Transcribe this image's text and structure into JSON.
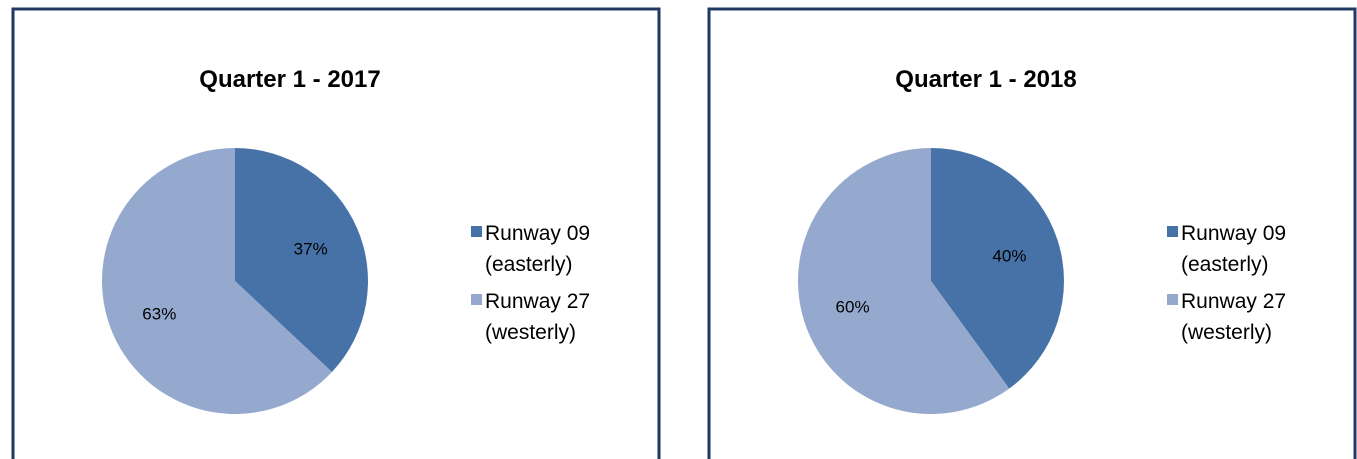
{
  "chart_data": [
    {
      "type": "pie",
      "title": "Quarter 1 - 2017",
      "categories": [
        "Runway 09 (easterly)",
        "Runway 27 (westerly)"
      ],
      "values": [
        37,
        63
      ],
      "value_labels": [
        "37%",
        "63%"
      ],
      "colors": [
        "#4672a8",
        "#95a9cf"
      ]
    },
    {
      "type": "pie",
      "title": "Quarter 1 - 2018",
      "categories": [
        "Runway 09 (easterly)",
        "Runway 27 (westerly)"
      ],
      "values": [
        40,
        60
      ],
      "value_labels": [
        "40%",
        "60%"
      ],
      "colors": [
        "#4672a8",
        "#95a9cf"
      ]
    }
  ]
}
